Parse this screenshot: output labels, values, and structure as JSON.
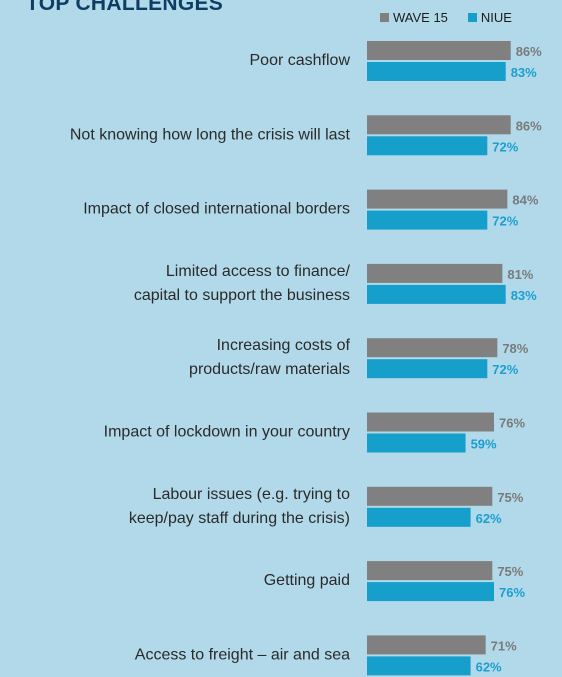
{
  "chart_data": {
    "type": "bar",
    "orientation": "horizontal",
    "title": "TOP CHALLENGES",
    "categories": [
      [
        "Poor cashflow"
      ],
      [
        "Not knowing how long the crisis will last"
      ],
      [
        "Impact of closed international borders"
      ],
      [
        "Limited access to finance/",
        "capital  to support the business"
      ],
      [
        "Increasing costs of",
        "products/raw materials"
      ],
      [
        "Impact of lockdown in your country"
      ],
      [
        "Labour issues  (e.g. trying to",
        "keep/pay staff during the crisis)"
      ],
      [
        "Getting paid"
      ],
      [
        "Access to freight – air and sea"
      ]
    ],
    "series": [
      {
        "name": "WAVE 15",
        "color": "#808080",
        "label_color": "#7a7a7a",
        "values": [
          86,
          86,
          84,
          81,
          78,
          76,
          75,
          75,
          71
        ],
        "labels": [
          "86%",
          "86%",
          "84%",
          "81%",
          "78%",
          "76%",
          "75%",
          "75%",
          "71%"
        ]
      },
      {
        "name": "NIUE",
        "color": "#179fcb",
        "label_color": "#1a9fd0",
        "values": [
          83,
          72,
          72,
          83,
          72,
          59,
          62,
          76,
          62
        ],
        "labels": [
          "83%",
          "72%",
          "72%",
          "83%",
          "72%",
          "59%",
          "62%",
          "76%",
          "62%"
        ]
      }
    ],
    "legend": "top-right",
    "grid": false
  }
}
